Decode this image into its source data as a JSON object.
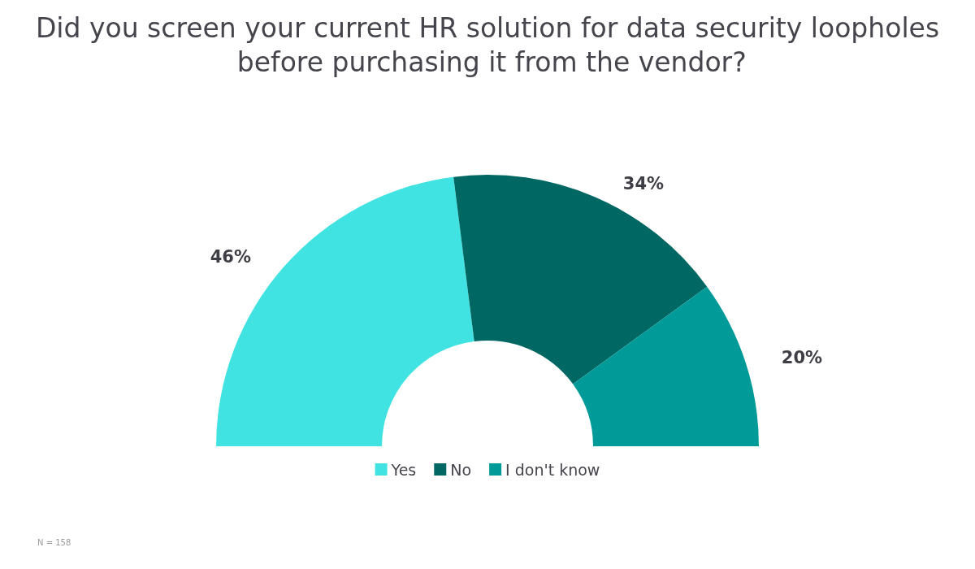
{
  "chart_data": {
    "type": "donut",
    "title": "Did you screen your current HR solution for data security loopholes before purchasing it from the vendor?",
    "categories": [
      "Yes",
      "No",
      "I don't know"
    ],
    "values": [
      46,
      34,
      20
    ],
    "value_labels": [
      "46%",
      "34%",
      "20%"
    ],
    "colors": [
      "#40e3e1",
      "#006762",
      "#009b99"
    ],
    "legend": "bottom",
    "annotations": [
      "N = 158"
    ]
  }
}
